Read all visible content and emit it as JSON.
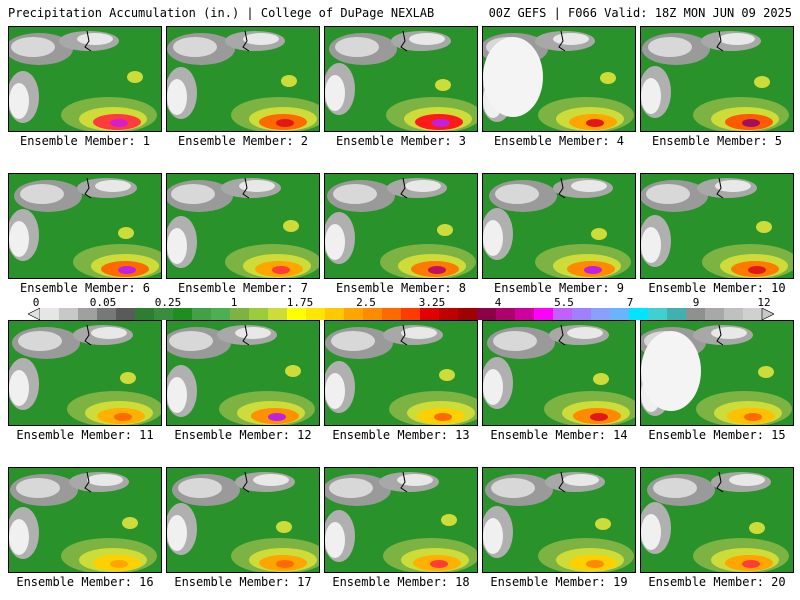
{
  "header": {
    "title": "Precipitation Accumulation (in.) | College of DuPage NEXLAB",
    "run_info": "00Z GEFS | F066 Valid: 18Z MON JUN 09 2025"
  },
  "members": [
    {
      "label": "Ensemble Member: 1",
      "core": "#ff3b3b",
      "peak": "#d020d0"
    },
    {
      "label": "Ensemble Member: 2",
      "core": "#ff6a00",
      "peak": "#e01818"
    },
    {
      "label": "Ensemble Member: 3",
      "core": "#ff1a1a",
      "peak": "#c020e0"
    },
    {
      "label": "Ensemble Member: 4",
      "core": "#ffa500",
      "peak": "#e01818"
    },
    {
      "label": "Ensemble Member: 5",
      "core": "#ff5a00",
      "peak": "#a01060"
    },
    {
      "label": "Ensemble Member: 6",
      "core": "#ff6a00",
      "peak": "#c020e0"
    },
    {
      "label": "Ensemble Member: 7",
      "core": "#ffa500",
      "peak": "#ff3b3b"
    },
    {
      "label": "Ensemble Member: 8",
      "core": "#ff7a00",
      "peak": "#c01060"
    },
    {
      "label": "Ensemble Member: 9",
      "core": "#ff8a00",
      "peak": "#c020e0"
    },
    {
      "label": "Ensemble Member: 10",
      "core": "#ff7a00",
      "peak": "#e01818"
    },
    {
      "label": "Ensemble Member: 11",
      "core": "#ffb000",
      "peak": "#ff6a00"
    },
    {
      "label": "Ensemble Member: 12",
      "core": "#ff9000",
      "peak": "#c020e0"
    },
    {
      "label": "Ensemble Member: 13",
      "core": "#ffd000",
      "peak": "#ff6a00"
    },
    {
      "label": "Ensemble Member: 14",
      "core": "#ff8a00",
      "peak": "#e01818"
    },
    {
      "label": "Ensemble Member: 15",
      "core": "#ffc000",
      "peak": "#ff6a00"
    },
    {
      "label": "Ensemble Member: 16",
      "core": "#ffd000",
      "peak": "#ffa500"
    },
    {
      "label": "Ensemble Member: 17",
      "core": "#ffa500",
      "peak": "#ff6a00"
    },
    {
      "label": "Ensemble Member: 18",
      "core": "#ffb000",
      "peak": "#ff3b3b"
    },
    {
      "label": "Ensemble Member: 19",
      "core": "#ffd000",
      "peak": "#ff8a00"
    },
    {
      "label": "Ensemble Member: 20",
      "core": "#ffa500",
      "peak": "#ff3b3b"
    }
  ],
  "colorbar": {
    "tick_labels": [
      "0",
      "0.05",
      "0.25",
      "1",
      "1.75",
      "2.5",
      "3.25",
      "4",
      "5.5",
      "7",
      "9",
      "12"
    ],
    "colors": [
      "#e6e6e6",
      "#c8c8c8",
      "#a0a0a0",
      "#787878",
      "#5a5a5a",
      "#2e7d32",
      "#388e3c",
      "#1e8f1e",
      "#43a047",
      "#4caf50",
      "#7cb342",
      "#9ccc3c",
      "#cddc39",
      "#ffff00",
      "#ffe600",
      "#ffc800",
      "#ffa500",
      "#ff8c00",
      "#ff6a00",
      "#ff3b00",
      "#e00000",
      "#c00000",
      "#a00000",
      "#8b0046",
      "#b0006e",
      "#d000a0",
      "#ff00ff",
      "#c060ff",
      "#a080ff",
      "#8aa0ff",
      "#6ab4ff",
      "#00e5ff",
      "#40d0d0",
      "#40b0b0",
      "#909090",
      "#a8a8a8",
      "#c0c0c0",
      "#d0d0d0"
    ]
  }
}
